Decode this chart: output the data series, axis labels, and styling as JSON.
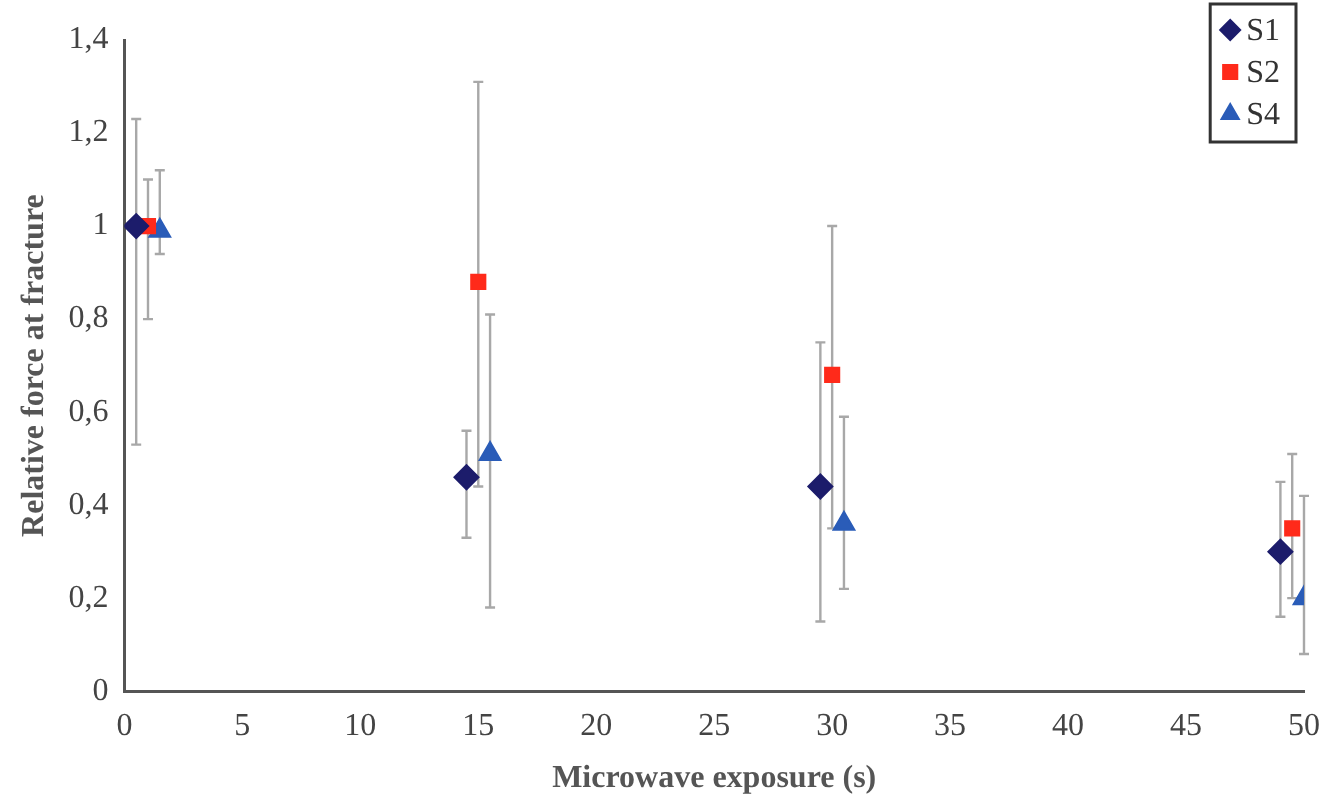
{
  "chart_data": {
    "type": "scatter",
    "xlabel": "Microwave exposure (s)",
    "ylabel": "Relative force at fracture",
    "xlim": [
      0,
      50
    ],
    "xticks": [
      0,
      5,
      10,
      15,
      20,
      25,
      30,
      35,
      40,
      45,
      50
    ],
    "ylim": [
      0,
      1.4
    ],
    "yticks": [
      {
        "value": 0,
        "label": "0"
      },
      {
        "value": 0.2,
        "label": "0,2"
      },
      {
        "value": 0.4,
        "label": "0,4"
      },
      {
        "value": 0.6,
        "label": "0,6"
      },
      {
        "value": 0.8,
        "label": "0,8"
      },
      {
        "value": 1,
        "label": "1"
      },
      {
        "value": 1.2,
        "label": "1,2"
      },
      {
        "value": 1.4,
        "label": "1,4"
      }
    ],
    "grid": false,
    "legend": "top right",
    "series": [
      {
        "name": "S1",
        "color": "#1c1c6b",
        "marker": "diamond",
        "x": [
          0.5,
          14.5,
          29.5,
          49
        ],
        "values": [
          1,
          0.46,
          0.44,
          0.3
        ],
        "errors": [
          [
            0.53,
            1.23
          ],
          [
            0.33,
            0.56
          ],
          [
            0.15,
            0.75
          ],
          [
            0.16,
            0.45
          ]
        ]
      },
      {
        "name": "S2",
        "color": "#ff2a1a",
        "marker": "square",
        "x": [
          1,
          15,
          30,
          49.5
        ],
        "values": [
          1,
          0.88,
          0.68,
          0.35
        ],
        "errors": [
          [
            0.8,
            1.1
          ],
          [
            0.44,
            1.31
          ],
          [
            0.35,
            1
          ],
          [
            0.2,
            0.51
          ]
        ]
      },
      {
        "name": "S4",
        "color": "#2a5cb8",
        "marker": "triangle",
        "x": [
          1.5,
          15.5,
          30.5,
          50
        ],
        "values": [
          0.99,
          0.51,
          0.36,
          0.2
        ],
        "errors": [
          [
            0.94,
            1.12
          ],
          [
            0.18,
            0.81
          ],
          [
            0.22,
            0.59
          ],
          [
            0.08,
            0.42
          ]
        ]
      }
    ]
  }
}
